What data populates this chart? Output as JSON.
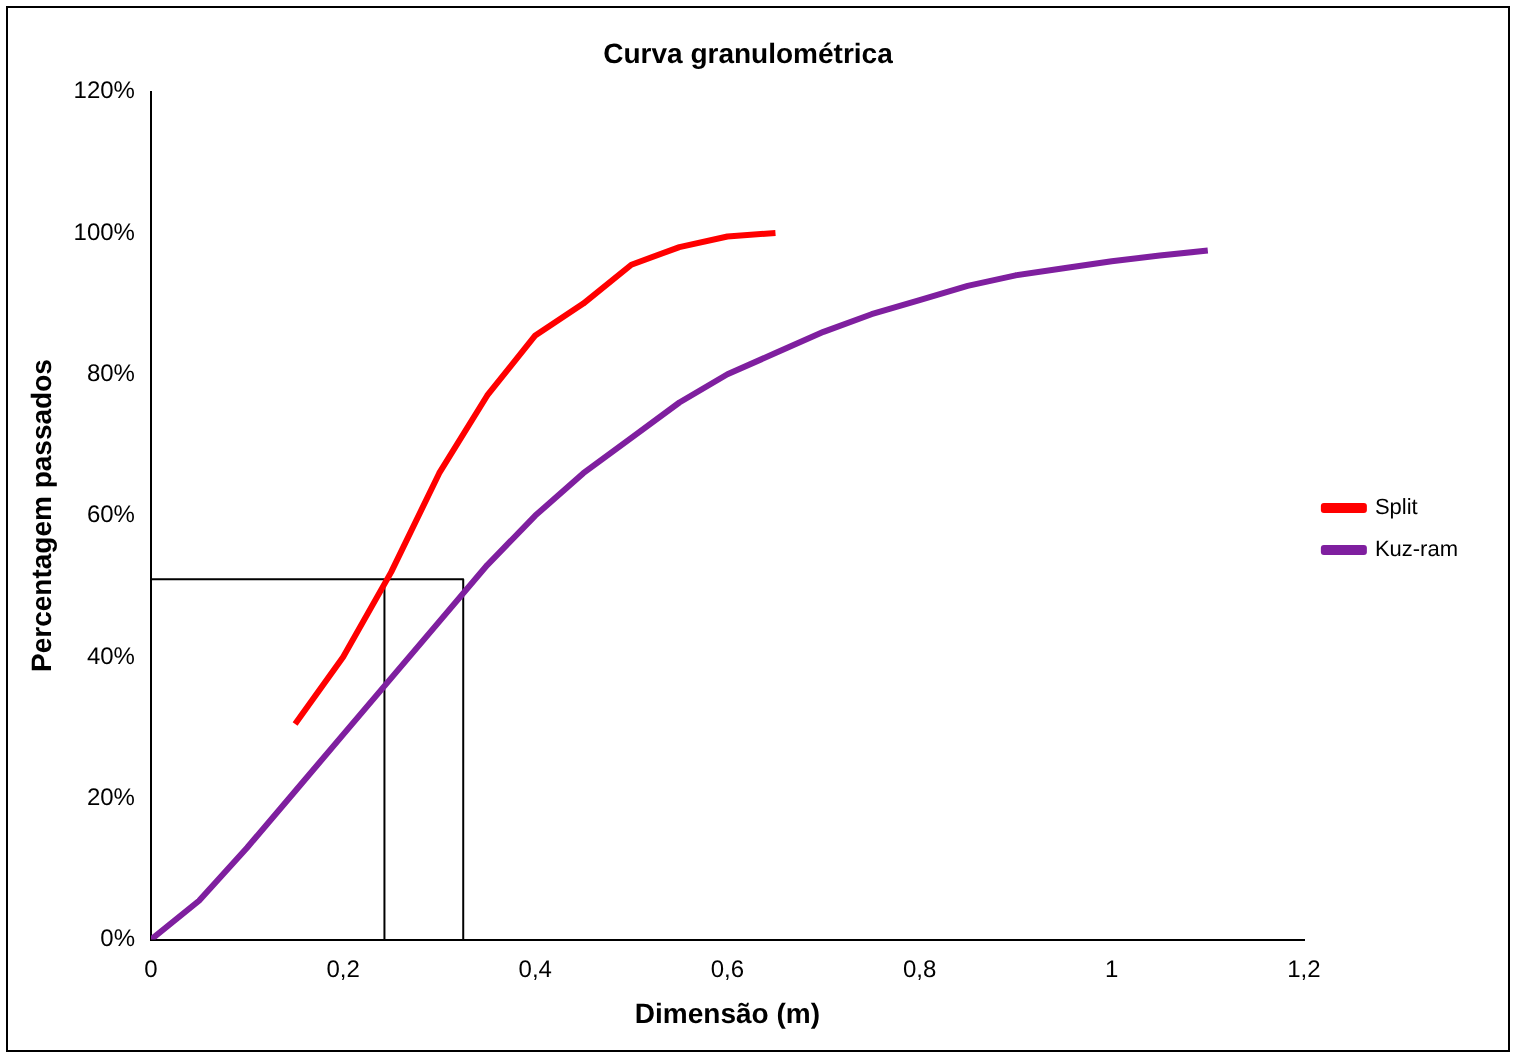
{
  "chart_data": {
    "type": "line",
    "title": "Curva granulométrica",
    "xlabel": "Dimensão (m)",
    "ylabel": "Percentagem passados",
    "xlim": [
      0,
      1.2
    ],
    "xticks": [
      0,
      {
        "value": 0.2,
        "label": "0,2"
      },
      {
        "value": 0.4,
        "label": "0,4"
      },
      {
        "value": 0.6,
        "label": "0,6"
      },
      {
        "value": 0.8,
        "label": "0,8"
      },
      1,
      {
        "value": 1.2,
        "label": "1,2"
      }
    ],
    "ylim": [
      0,
      120
    ],
    "yticks": [
      {
        "value": 0,
        "label": "0%"
      },
      {
        "value": 20,
        "label": "20%"
      },
      {
        "value": 40,
        "label": "40%"
      },
      {
        "value": 60,
        "label": "60%"
      },
      {
        "value": 80,
        "label": "80%"
      },
      {
        "value": 100,
        "label": "100%"
      },
      {
        "value": 120,
        "label": "120%"
      }
    ],
    "grid": false,
    "legend": "right",
    "marker": "none",
    "line_style": "solid",
    "series": [
      {
        "name": "Split",
        "color": "#ff0000",
        "x": [
          0.15,
          0.2,
          0.25,
          0.3,
          0.35,
          0.4,
          0.45,
          0.5,
          0.55,
          0.6,
          0.65
        ],
        "values": [
          30.5,
          40,
          52,
          66,
          77,
          85.5,
          90,
          95.5,
          98,
          99.5,
          100
        ]
      },
      {
        "name": "Kuz-ram",
        "color": "#7f1f9f",
        "x": [
          0,
          0.05,
          0.1,
          0.15,
          0.2,
          0.25,
          0.3,
          0.35,
          0.4,
          0.45,
          0.5,
          0.55,
          0.6,
          0.65,
          0.7,
          0.75,
          0.8,
          0.85,
          0.9,
          0.95,
          1,
          1.05,
          1.1
        ],
        "values": [
          0,
          5.5,
          13,
          21,
          29,
          37,
          45,
          53,
          60,
          66,
          71,
          76,
          80,
          83,
          86,
          88.5,
          90.5,
          92.5,
          94,
          95,
          96,
          96.8,
          97.5
        ]
      },
      {
        "color": "#000000",
        "x": [
          0,
          0.325,
          0.325
        ],
        "values": [
          51,
          51,
          0
        ]
      },
      {
        "color": "#000000",
        "x": [
          0.243,
          0.243
        ],
        "values": [
          0,
          51
        ]
      }
    ]
  }
}
